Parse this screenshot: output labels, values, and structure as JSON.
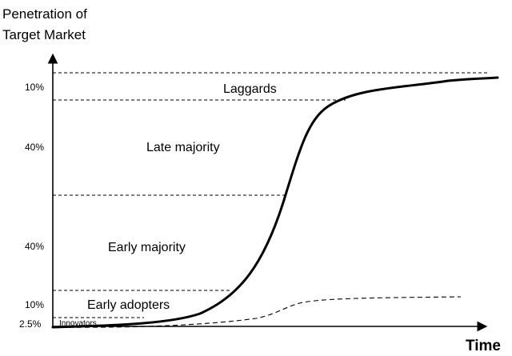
{
  "diagram": {
    "y_title_lines": [
      "Penetration of",
      "Target Market"
    ],
    "x_title": "Time",
    "segments": [
      {
        "name": "Innovators",
        "percent_label": "2.5%",
        "share": 2.5
      },
      {
        "name": "Early adopters",
        "percent_label": "10%",
        "share": 10
      },
      {
        "name": "Early majority",
        "percent_label": "40%",
        "share": 40
      },
      {
        "name": "Late majority",
        "percent_label": "40%",
        "share": 40
      },
      {
        "name": "Laggards",
        "percent_label": "10%",
        "share": 10
      }
    ],
    "curves": [
      {
        "name": "cumulative-adoption",
        "style": "solid-thick"
      },
      {
        "name": "secondary-adoption",
        "style": "dashed"
      }
    ],
    "colors": {
      "ink": "#000000",
      "background": "#ffffff"
    }
  }
}
